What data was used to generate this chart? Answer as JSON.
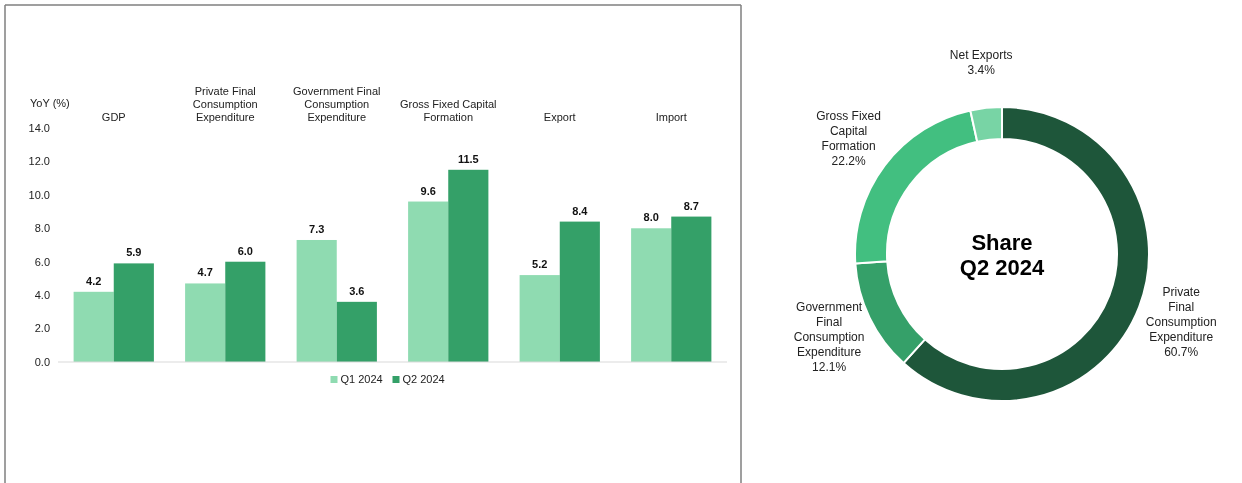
{
  "chart_data": [
    {
      "type": "bar",
      "ylabel": "YoY (%)",
      "categories": [
        "GDP",
        "Private Final Consumption Expenditure",
        "Government Final Consumption Expenditure",
        "Gross Fixed Capital Formation",
        "Export",
        "Import"
      ],
      "series": [
        {
          "name": "Q1 2024",
          "color": "#8fdbb1",
          "values": [
            4.2,
            4.7,
            7.3,
            9.6,
            5.2,
            8.0
          ],
          "value_labels": [
            "4.2",
            "4.7",
            "7.3",
            "9.6",
            "5.2",
            "8.0"
          ]
        },
        {
          "name": "Q2 2024",
          "color": "#34a068",
          "values": [
            5.9,
            6.0,
            3.6,
            11.5,
            8.4,
            8.7
          ],
          "value_labels": [
            "5.9",
            "6.0",
            "3.6",
            "11.5",
            "8.4",
            "8.7"
          ]
        }
      ],
      "ylim": [
        0,
        14
      ],
      "yticks": [
        {
          "value": 0,
          "label": "0.0"
        },
        {
          "value": 2,
          "label": "2.0"
        },
        {
          "value": 4,
          "label": "4.0"
        },
        {
          "value": 6,
          "label": "6.0"
        },
        {
          "value": 8,
          "label": "8.0"
        },
        {
          "value": 10,
          "label": "10.0"
        },
        {
          "value": 12,
          "label": "12.0"
        },
        {
          "value": 14,
          "label": "14.0"
        }
      ],
      "grid": false,
      "legend": "bottom"
    },
    {
      "type": "donut",
      "title": "Share Q2 2024",
      "categories": [
        "Private Final Consumption Expenditure",
        "Government Final Consumption Expenditure",
        "Gross Fixed Capital Formation",
        "Net Exports"
      ],
      "values": [
        60.7,
        12.1,
        22.2,
        3.4
      ],
      "value_labels": [
        "60.7%",
        "12.1%",
        "22.2%",
        "3.4%"
      ],
      "colors": [
        "#1e563a",
        "#35a069",
        "#42bf80",
        "#78d4a5"
      ]
    }
  ]
}
